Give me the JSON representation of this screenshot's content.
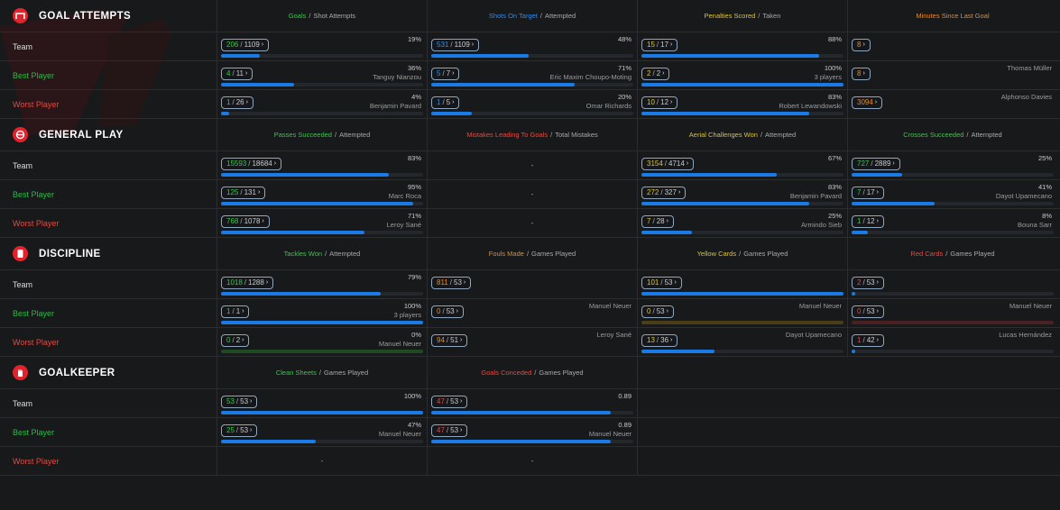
{
  "colors": {
    "accent": "#e0242d",
    "bar": "#1a7be6",
    "green": "#3fc34f",
    "blue": "#2d8cf0",
    "yellow": "#d9c23c",
    "orange": "#e78a2c",
    "red": "#e24a43"
  },
  "sections": [
    {
      "title": "GOAL ATTEMPTS",
      "icon": "goal-icon",
      "columns": [
        {
          "primary": "Goals",
          "color": "green",
          "secondary": "Shot Attempts"
        },
        {
          "primary": "Shots On Target",
          "color": "blue",
          "secondary": "Attempted"
        },
        {
          "primary": "Penalties Scored",
          "color": "yellow",
          "secondary": "Taken"
        },
        {
          "primary": "Minutes Since Last Goal",
          "color": "orange",
          "secondary": ""
        }
      ],
      "rows": [
        {
          "label": "Team",
          "kind": "team",
          "cells": [
            {
              "a": "206",
              "b": "1109",
              "pct": "19%",
              "sub": "",
              "fill": 0.19
            },
            {
              "a": "531",
              "b": "1109",
              "pct": "48%",
              "sub": "",
              "fill": 0.48
            },
            {
              "a": "15",
              "b": "17",
              "pct": "88%",
              "sub": "",
              "fill": 0.88
            },
            {
              "a": "8",
              "b": "",
              "pct": "",
              "sub": "",
              "fill": null
            }
          ]
        },
        {
          "label": "Best Player",
          "kind": "best",
          "cells": [
            {
              "a": "4",
              "b": "11",
              "pct": "36%",
              "sub": "Tanguy Nianzou",
              "fill": 0.36
            },
            {
              "a": "5",
              "b": "7",
              "pct": "71%",
              "sub": "Eric Maxim Choupo-Moting",
              "fill": 0.71
            },
            {
              "a": "2",
              "b": "2",
              "pct": "100%",
              "sub": "3 players",
              "fill": 1.0
            },
            {
              "a": "8",
              "b": "",
              "pct": "",
              "sub": "Thomas Müller",
              "fill": null
            }
          ]
        },
        {
          "label": "Worst Player",
          "kind": "worst",
          "cells": [
            {
              "a": "1",
              "b": "26",
              "pct": "4%",
              "sub": "Benjamin Pavard",
              "fill": 0.04
            },
            {
              "a": "1",
              "b": "5",
              "pct": "20%",
              "sub": "Omar Richards",
              "fill": 0.2
            },
            {
              "a": "10",
              "b": "12",
              "pct": "83%",
              "sub": "Robert Lewandowski",
              "fill": 0.83
            },
            {
              "a": "3094",
              "b": "",
              "pct": "",
              "sub": "Alphonso Davies",
              "fill": null
            }
          ]
        }
      ]
    },
    {
      "title": "GENERAL PLAY",
      "icon": "general-play-icon",
      "columns": [
        {
          "primary": "Passes Succeeded",
          "color": "green",
          "secondary": "Attempted"
        },
        {
          "primary": "Mistakes Leading To Goals",
          "color": "red",
          "secondary": "Total Mistakes"
        },
        {
          "primary": "Aerial Challenges Won",
          "color": "yellow",
          "secondary": "Attempted"
        },
        {
          "primary": "Crosses Succeeded",
          "color": "green",
          "secondary": "Attempted"
        }
      ],
      "rows": [
        {
          "label": "Team",
          "kind": "team",
          "cells": [
            {
              "a": "15593",
              "b": "18684",
              "pct": "83%",
              "sub": "",
              "fill": 0.83
            },
            {
              "dash": "-"
            },
            {
              "a": "3154",
              "b": "4714",
              "pct": "67%",
              "sub": "",
              "fill": 0.67
            },
            {
              "a": "727",
              "b": "2889",
              "pct": "25%",
              "sub": "",
              "fill": 0.25
            }
          ]
        },
        {
          "label": "Best Player",
          "kind": "best",
          "cells": [
            {
              "a": "125",
              "b": "131",
              "pct": "95%",
              "sub": "Marc Roca",
              "fill": 0.95
            },
            {
              "dash": "-"
            },
            {
              "a": "272",
              "b": "327",
              "pct": "83%",
              "sub": "Benjamin Pavard",
              "fill": 0.83
            },
            {
              "a": "7",
              "b": "17",
              "pct": "41%",
              "sub": "Dayot Upamecano",
              "fill": 0.41
            }
          ]
        },
        {
          "label": "Worst Player",
          "kind": "worst",
          "cells": [
            {
              "a": "768",
              "b": "1078",
              "pct": "71%",
              "sub": "Leroy Sané",
              "fill": 0.71
            },
            {
              "dash": "-"
            },
            {
              "a": "7",
              "b": "28",
              "pct": "25%",
              "sub": "Armindo Sieb",
              "fill": 0.25
            },
            {
              "a": "1",
              "b": "12",
              "pct": "8%",
              "sub": "Bouna Sarr",
              "fill": 0.08
            }
          ]
        }
      ]
    },
    {
      "title": "DISCIPLINE",
      "icon": "discipline-icon",
      "columns": [
        {
          "primary": "Tackles Won",
          "color": "green",
          "secondary": "Attempted"
        },
        {
          "primary": "Fouls Made",
          "color": "orange",
          "secondary": "Games Played"
        },
        {
          "primary": "Yellow Cards",
          "color": "yellow",
          "secondary": "Games Played"
        },
        {
          "primary": "Red Cards",
          "color": "red",
          "secondary": "Games Played"
        }
      ],
      "rows": [
        {
          "label": "Team",
          "kind": "team",
          "cells": [
            {
              "a": "1018",
              "b": "1288",
              "pct": "79%",
              "sub": "",
              "fill": 0.79,
              "ac": "green"
            },
            {
              "a": "811",
              "b": "53",
              "pct": "",
              "sub": "",
              "fill": null,
              "ac": "orange"
            },
            {
              "a": "101",
              "b": "53",
              "pct": "",
              "sub": "",
              "fill": 1.0,
              "ac": "yellow"
            },
            {
              "a": "2",
              "b": "53",
              "pct": "",
              "sub": "",
              "fill": 0.02,
              "ac": "red"
            }
          ]
        },
        {
          "label": "Best Player",
          "kind": "best",
          "cells": [
            {
              "a": "1",
              "b": "1",
              "pct": "100%",
              "sub": "3 players",
              "fill": 1.0,
              "ac": "green"
            },
            {
              "a": "0",
              "b": "53",
              "pct": "",
              "sub": "Manuel Neuer",
              "fill": null,
              "ac": "orange"
            },
            {
              "a": "0",
              "b": "53",
              "pct": "",
              "sub": "Manuel Neuer",
              "fill": 0,
              "trk": "#4a3e17",
              "ac": "yellow"
            },
            {
              "a": "0",
              "b": "53",
              "pct": "",
              "sub": "Manuel Neuer",
              "fill": 0,
              "trk": "#4a2023",
              "ac": "red"
            }
          ]
        },
        {
          "label": "Worst Player",
          "kind": "worst",
          "cells": [
            {
              "a": "0",
              "b": "2",
              "pct": "0%",
              "sub": "Manuel Neuer",
              "fill": 0,
              "trk": "#1f4a22",
              "ac": "green"
            },
            {
              "a": "94",
              "b": "51",
              "pct": "",
              "sub": "Leroy Sané",
              "fill": null,
              "ac": "orange"
            },
            {
              "a": "13",
              "b": "36",
              "pct": "",
              "sub": "Dayot Upamecano",
              "fill": 0.36,
              "ac": "yellow"
            },
            {
              "a": "1",
              "b": "42",
              "pct": "",
              "sub": "Lucas Hernández",
              "fill": 0.02,
              "ac": "red"
            }
          ]
        }
      ]
    },
    {
      "title": "GOALKEEPER",
      "icon": "goalkeeper-icon",
      "columns": [
        {
          "primary": "Clean Sheets",
          "color": "green",
          "secondary": "Games Played"
        },
        {
          "primary": "Goals Conceded",
          "color": "red",
          "secondary": "Games Played"
        }
      ],
      "rows": [
        {
          "label": "Team",
          "kind": "team",
          "cells": [
            {
              "a": "53",
              "b": "53",
              "pct": "100%",
              "sub": "",
              "fill": 1.0,
              "ac": "green"
            },
            {
              "a": "47",
              "b": "53",
              "pct": "0.89",
              "sub": "",
              "fill": 0.89,
              "ac": "red"
            }
          ]
        },
        {
          "label": "Best Player",
          "kind": "best",
          "cells": [
            {
              "a": "25",
              "b": "53",
              "pct": "47%",
              "sub": "Manuel Neuer",
              "fill": 0.47,
              "ac": "green"
            },
            {
              "a": "47",
              "b": "53",
              "pct": "0.89",
              "sub": "Manuel Neuer",
              "fill": 0.89,
              "ac": "red"
            }
          ]
        },
        {
          "label": "Worst Player",
          "kind": "worst",
          "cells": [
            {
              "dash": "-"
            },
            {
              "dash": "-"
            }
          ]
        }
      ]
    }
  ]
}
